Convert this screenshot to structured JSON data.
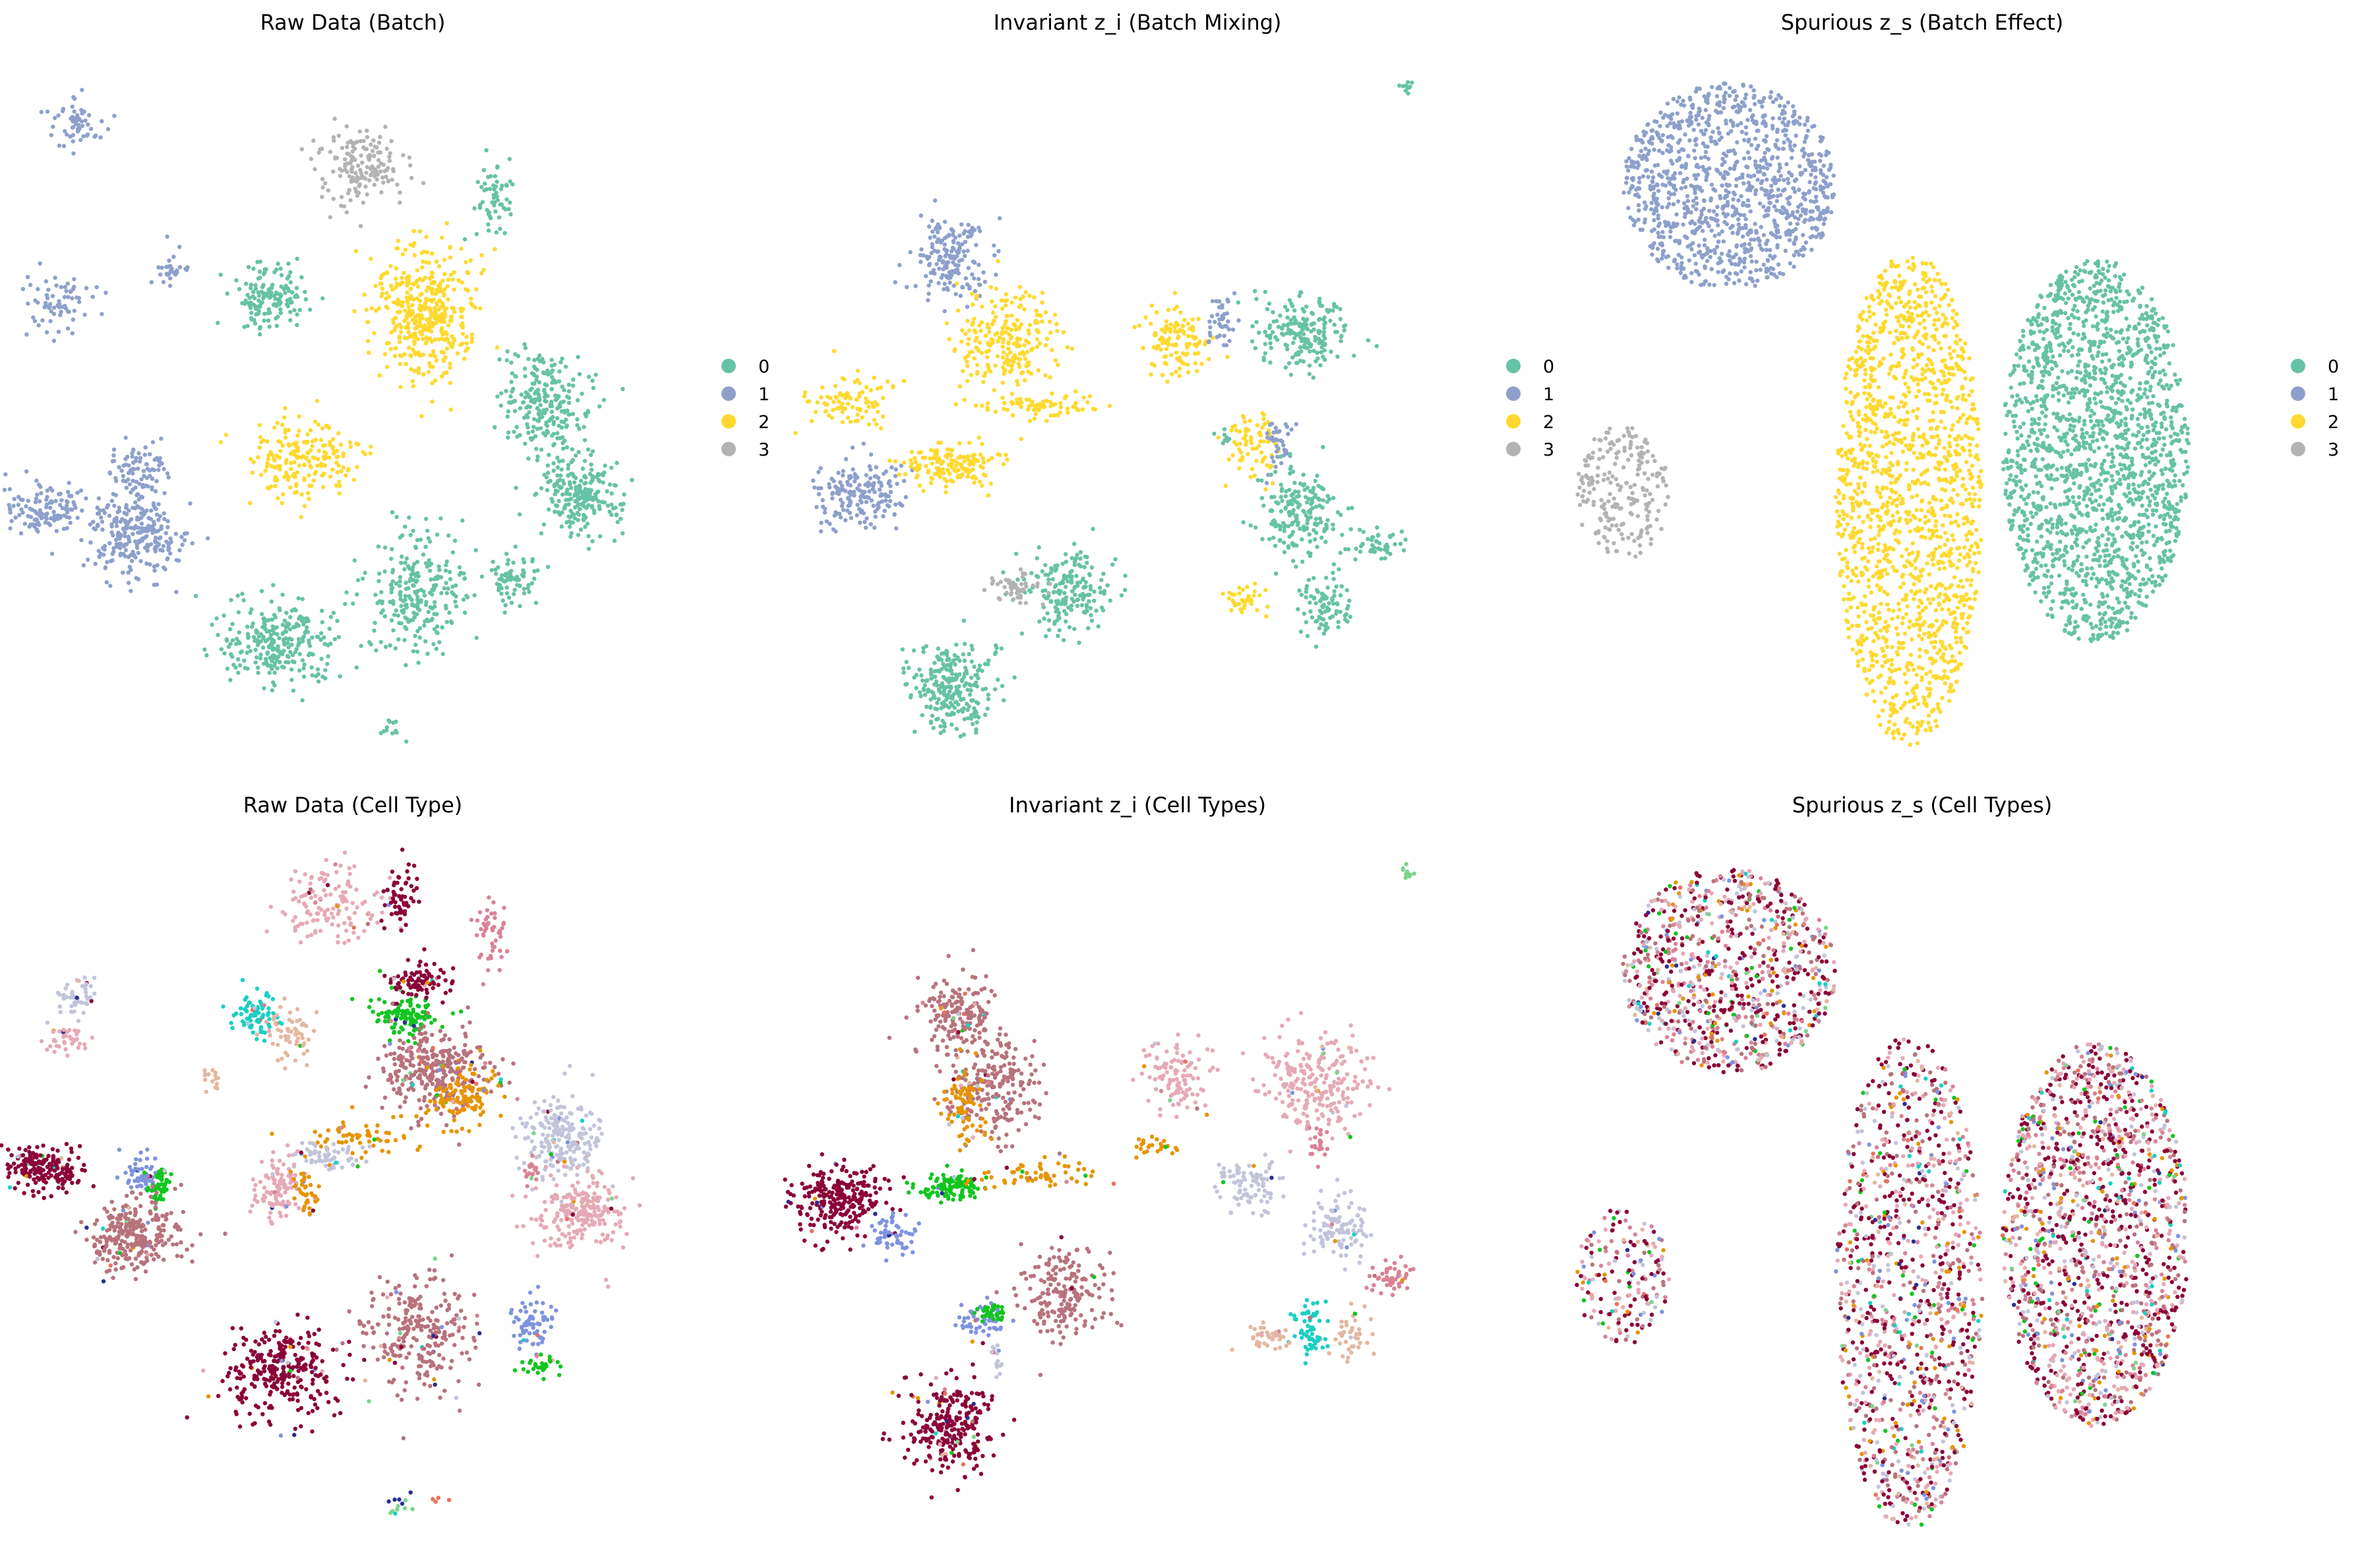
{
  "figure": {
    "background": "#ffffff"
  },
  "batch_palette": [
    "#66c2a5",
    "#8da0cb",
    "#ffd92f",
    "#b3b3b3"
  ],
  "celltype_palette": [
    "#8b0038",
    "#b8727c",
    "#e6a9b6",
    "#c2c4da",
    "#e69400",
    "#12c51f",
    "#7e93df",
    "#1bcfc3",
    "#d98296",
    "#e4b7a0",
    "#2a2f8f",
    "#7cd48b",
    "#e8715c"
  ],
  "chart_data": [
    {
      "type": "scatter",
      "title": "Raw Data (Batch)",
      "xlabel": "",
      "ylabel": "",
      "grid": false,
      "legend": {
        "placement": "right",
        "entries": [
          "0",
          "1",
          "2",
          "3"
        ]
      },
      "color_by": "batch",
      "clusters": [
        {
          "x": 0.115,
          "y": 0.095,
          "rx": 0.04,
          "ry": 0.04,
          "n": 60,
          "cat": 1
        },
        {
          "x": 0.09,
          "y": 0.36,
          "rx": 0.05,
          "ry": 0.045,
          "n": 70,
          "cat": 1
        },
        {
          "x": 0.26,
          "y": 0.305,
          "rx": 0.03,
          "ry": 0.03,
          "n": 30,
          "cat": 1
        },
        {
          "x": 0.065,
          "y": 0.655,
          "rx": 0.06,
          "ry": 0.035,
          "n": 120,
          "cat": 1
        },
        {
          "x": 0.205,
          "y": 0.6,
          "rx": 0.045,
          "ry": 0.05,
          "n": 90,
          "cat": 1
        },
        {
          "x": 0.2,
          "y": 0.7,
          "rx": 0.07,
          "ry": 0.06,
          "n": 260,
          "cat": 1
        },
        {
          "x": 0.54,
          "y": 0.155,
          "rx": 0.065,
          "ry": 0.06,
          "n": 160,
          "cat": 3
        },
        {
          "x": 0.405,
          "y": 0.345,
          "rx": 0.055,
          "ry": 0.055,
          "n": 140,
          "cat": 0
        },
        {
          "x": 0.74,
          "y": 0.205,
          "rx": 0.03,
          "ry": 0.05,
          "n": 60,
          "cat": 0
        },
        {
          "x": 0.64,
          "y": 0.37,
          "rx": 0.08,
          "ry": 0.09,
          "n": 420,
          "cat": 2
        },
        {
          "x": 0.45,
          "y": 0.585,
          "rx": 0.08,
          "ry": 0.055,
          "n": 200,
          "cat": 2
        },
        {
          "x": 0.82,
          "y": 0.5,
          "rx": 0.065,
          "ry": 0.065,
          "n": 240,
          "cat": 0
        },
        {
          "x": 0.87,
          "y": 0.635,
          "rx": 0.065,
          "ry": 0.055,
          "n": 230,
          "cat": 0
        },
        {
          "x": 0.63,
          "y": 0.78,
          "rx": 0.08,
          "ry": 0.09,
          "n": 250,
          "cat": 0
        },
        {
          "x": 0.77,
          "y": 0.76,
          "rx": 0.035,
          "ry": 0.04,
          "n": 70,
          "cat": 0
        },
        {
          "x": 0.42,
          "y": 0.85,
          "rx": 0.09,
          "ry": 0.06,
          "n": 280,
          "cat": 0
        },
        {
          "x": 0.59,
          "y": 0.975,
          "rx": 0.03,
          "ry": 0.015,
          "n": 12,
          "cat": 0
        }
      ]
    },
    {
      "type": "scatter",
      "title": "Invariant z_i (Batch Mixing)",
      "xlabel": "",
      "ylabel": "",
      "grid": false,
      "legend": {
        "placement": "right",
        "entries": [
          "0",
          "1",
          "2",
          "3"
        ]
      },
      "color_by": "batch",
      "clusters": [
        {
          "x": 0.935,
          "y": 0.04,
          "rx": 0.01,
          "ry": 0.01,
          "n": 10,
          "cat": 0
        },
        {
          "x": 0.25,
          "y": 0.29,
          "rx": 0.055,
          "ry": 0.06,
          "n": 180,
          "cat": 1
        },
        {
          "x": 0.33,
          "y": 0.41,
          "rx": 0.07,
          "ry": 0.07,
          "n": 230,
          "cat": 2
        },
        {
          "x": 0.1,
          "y": 0.5,
          "rx": 0.07,
          "ry": 0.04,
          "n": 90,
          "cat": 2
        },
        {
          "x": 0.11,
          "y": 0.635,
          "rx": 0.07,
          "ry": 0.05,
          "n": 180,
          "cat": 1
        },
        {
          "x": 0.25,
          "y": 0.59,
          "rx": 0.07,
          "ry": 0.03,
          "n": 160,
          "cat": 2
        },
        {
          "x": 0.38,
          "y": 0.505,
          "rx": 0.09,
          "ry": 0.02,
          "n": 70,
          "cat": 2
        },
        {
          "x": 0.585,
          "y": 0.41,
          "rx": 0.05,
          "ry": 0.05,
          "n": 120,
          "cat": 2
        },
        {
          "x": 0.655,
          "y": 0.385,
          "rx": 0.02,
          "ry": 0.04,
          "n": 40,
          "cat": 1
        },
        {
          "x": 0.78,
          "y": 0.395,
          "rx": 0.07,
          "ry": 0.055,
          "n": 190,
          "cat": 0
        },
        {
          "x": 0.7,
          "y": 0.555,
          "rx": 0.04,
          "ry": 0.05,
          "n": 70,
          "cat": 2
        },
        {
          "x": 0.745,
          "y": 0.56,
          "rx": 0.025,
          "ry": 0.04,
          "n": 40,
          "cat": 1
        },
        {
          "x": 0.77,
          "y": 0.655,
          "rx": 0.06,
          "ry": 0.07,
          "n": 190,
          "cat": 0
        },
        {
          "x": 0.885,
          "y": 0.71,
          "rx": 0.05,
          "ry": 0.03,
          "n": 50,
          "cat": 0
        },
        {
          "x": 0.81,
          "y": 0.795,
          "rx": 0.04,
          "ry": 0.05,
          "n": 90,
          "cat": 0
        },
        {
          "x": 0.66,
          "y": 0.55,
          "rx": 0.01,
          "ry": 0.015,
          "n": 8,
          "cat": 0
        },
        {
          "x": 0.42,
          "y": 0.775,
          "rx": 0.065,
          "ry": 0.06,
          "n": 190,
          "cat": 0
        },
        {
          "x": 0.35,
          "y": 0.77,
          "rx": 0.045,
          "ry": 0.02,
          "n": 50,
          "cat": 3
        },
        {
          "x": 0.25,
          "y": 0.92,
          "rx": 0.065,
          "ry": 0.07,
          "n": 260,
          "cat": 0
        },
        {
          "x": 0.69,
          "y": 0.79,
          "rx": 0.035,
          "ry": 0.02,
          "n": 40,
          "cat": 2
        }
      ]
    },
    {
      "type": "scatter",
      "title": "Spurious z_s (Batch Effect)",
      "xlabel": "",
      "ylabel": "",
      "grid": false,
      "legend": {
        "placement": "right",
        "entries": [
          "0",
          "1",
          "2",
          "3"
        ]
      },
      "color_by": "batch",
      "clusters": [
        {
          "x": 0.24,
          "y": 0.185,
          "rx": 0.16,
          "ry": 0.15,
          "n": 1100,
          "cat": 1
        },
        {
          "x": 0.08,
          "y": 0.63,
          "rx": 0.07,
          "ry": 0.1,
          "n": 220,
          "cat": 3
        },
        {
          "x": 0.51,
          "y": 0.64,
          "rx": 0.11,
          "ry": 0.36,
          "n": 1500,
          "cat": 2
        },
        {
          "x": 0.79,
          "y": 0.57,
          "rx": 0.14,
          "ry": 0.28,
          "n": 1800,
          "cat": 0
        }
      ]
    },
    {
      "type": "scatter",
      "title": "Raw Data (Cell Type)",
      "xlabel": "",
      "ylabel": "",
      "grid": false,
      "legend": {
        "placement": "none",
        "entries": []
      },
      "color_by": "celltype",
      "clusters": [
        {
          "x": 0.5,
          "y": 0.09,
          "rx": 0.08,
          "ry": 0.06,
          "n": 140,
          "cat": 2
        },
        {
          "x": 0.6,
          "y": 0.08,
          "rx": 0.025,
          "ry": 0.05,
          "n": 60,
          "cat": 0
        },
        {
          "x": 0.74,
          "y": 0.13,
          "rx": 0.025,
          "ry": 0.05,
          "n": 50,
          "cat": 8
        },
        {
          "x": 0.115,
          "y": 0.22,
          "rx": 0.035,
          "ry": 0.03,
          "n": 50,
          "cat": 3
        },
        {
          "x": 0.1,
          "y": 0.285,
          "rx": 0.035,
          "ry": 0.02,
          "n": 40,
          "cat": 2
        },
        {
          "x": 0.385,
          "y": 0.25,
          "rx": 0.035,
          "ry": 0.035,
          "n": 80,
          "cat": 7
        },
        {
          "x": 0.44,
          "y": 0.28,
          "rx": 0.035,
          "ry": 0.04,
          "n": 60,
          "cat": 9
        },
        {
          "x": 0.32,
          "y": 0.34,
          "rx": 0.015,
          "ry": 0.015,
          "n": 15,
          "cat": 9
        },
        {
          "x": 0.61,
          "y": 0.25,
          "rx": 0.05,
          "ry": 0.03,
          "n": 120,
          "cat": 5
        },
        {
          "x": 0.63,
          "y": 0.2,
          "rx": 0.05,
          "ry": 0.03,
          "n": 90,
          "cat": 0
        },
        {
          "x": 0.65,
          "y": 0.33,
          "rx": 0.08,
          "ry": 0.06,
          "n": 320,
          "cat": 1
        },
        {
          "x": 0.69,
          "y": 0.37,
          "rx": 0.05,
          "ry": 0.04,
          "n": 120,
          "cat": 4
        },
        {
          "x": 0.53,
          "y": 0.43,
          "rx": 0.09,
          "ry": 0.03,
          "n": 60,
          "cat": 4
        },
        {
          "x": 0.49,
          "y": 0.455,
          "rx": 0.05,
          "ry": 0.02,
          "n": 60,
          "cat": 3
        },
        {
          "x": 0.42,
          "y": 0.5,
          "rx": 0.035,
          "ry": 0.05,
          "n": 110,
          "cat": 2
        },
        {
          "x": 0.46,
          "y": 0.51,
          "rx": 0.02,
          "ry": 0.03,
          "n": 40,
          "cat": 4
        },
        {
          "x": 0.065,
          "y": 0.475,
          "rx": 0.06,
          "ry": 0.03,
          "n": 200,
          "cat": 0
        },
        {
          "x": 0.215,
          "y": 0.485,
          "rx": 0.025,
          "ry": 0.03,
          "n": 60,
          "cat": 6
        },
        {
          "x": 0.24,
          "y": 0.5,
          "rx": 0.015,
          "ry": 0.03,
          "n": 50,
          "cat": 5
        },
        {
          "x": 0.2,
          "y": 0.57,
          "rx": 0.07,
          "ry": 0.05,
          "n": 280,
          "cat": 1
        },
        {
          "x": 0.84,
          "y": 0.43,
          "rx": 0.06,
          "ry": 0.06,
          "n": 210,
          "cat": 3
        },
        {
          "x": 0.87,
          "y": 0.54,
          "rx": 0.07,
          "ry": 0.055,
          "n": 230,
          "cat": 2
        },
        {
          "x": 0.8,
          "y": 0.475,
          "rx": 0.015,
          "ry": 0.02,
          "n": 20,
          "cat": 8
        },
        {
          "x": 0.63,
          "y": 0.71,
          "rx": 0.08,
          "ry": 0.09,
          "n": 260,
          "cat": 1
        },
        {
          "x": 0.8,
          "y": 0.7,
          "rx": 0.035,
          "ry": 0.04,
          "n": 70,
          "cat": 6
        },
        {
          "x": 0.81,
          "y": 0.76,
          "rx": 0.03,
          "ry": 0.015,
          "n": 30,
          "cat": 5
        },
        {
          "x": 0.42,
          "y": 0.77,
          "rx": 0.09,
          "ry": 0.07,
          "n": 300,
          "cat": 0
        },
        {
          "x": 0.59,
          "y": 0.97,
          "rx": 0.02,
          "ry": 0.02,
          "n": 8,
          "cat": 11
        },
        {
          "x": 0.6,
          "y": 0.95,
          "rx": 0.015,
          "ry": 0.01,
          "n": 5,
          "cat": 10
        },
        {
          "x": 0.66,
          "y": 0.96,
          "rx": 0.015,
          "ry": 0.01,
          "n": 4,
          "cat": 12
        }
      ]
    },
    {
      "type": "scatter",
      "title": "Invariant z_i (Cell Types)",
      "xlabel": "",
      "ylabel": "",
      "grid": false,
      "legend": {
        "placement": "none",
        "entries": []
      },
      "color_by": "celltype",
      "clusters": [
        {
          "x": 0.935,
          "y": 0.04,
          "rx": 0.01,
          "ry": 0.01,
          "n": 10,
          "cat": 11
        },
        {
          "x": 0.26,
          "y": 0.25,
          "rx": 0.06,
          "ry": 0.06,
          "n": 180,
          "cat": 1
        },
        {
          "x": 0.32,
          "y": 0.35,
          "rx": 0.07,
          "ry": 0.07,
          "n": 220,
          "cat": 1
        },
        {
          "x": 0.27,
          "y": 0.38,
          "rx": 0.03,
          "ry": 0.06,
          "n": 80,
          "cat": 4
        },
        {
          "x": 0.08,
          "y": 0.52,
          "rx": 0.07,
          "ry": 0.05,
          "n": 260,
          "cat": 0
        },
        {
          "x": 0.16,
          "y": 0.57,
          "rx": 0.04,
          "ry": 0.03,
          "n": 60,
          "cat": 6
        },
        {
          "x": 0.25,
          "y": 0.5,
          "rx": 0.05,
          "ry": 0.02,
          "n": 110,
          "cat": 5
        },
        {
          "x": 0.38,
          "y": 0.48,
          "rx": 0.09,
          "ry": 0.02,
          "n": 60,
          "cat": 4
        },
        {
          "x": 0.55,
          "y": 0.44,
          "rx": 0.04,
          "ry": 0.015,
          "n": 25,
          "cat": 4
        },
        {
          "x": 0.59,
          "y": 0.34,
          "rx": 0.05,
          "ry": 0.05,
          "n": 110,
          "cat": 2
        },
        {
          "x": 0.8,
          "y": 0.35,
          "rx": 0.08,
          "ry": 0.07,
          "n": 240,
          "cat": 2
        },
        {
          "x": 0.7,
          "y": 0.5,
          "rx": 0.05,
          "ry": 0.045,
          "n": 90,
          "cat": 3
        },
        {
          "x": 0.8,
          "y": 0.44,
          "rx": 0.015,
          "ry": 0.03,
          "n": 20,
          "cat": 8
        },
        {
          "x": 0.83,
          "y": 0.56,
          "rx": 0.045,
          "ry": 0.05,
          "n": 110,
          "cat": 3
        },
        {
          "x": 0.91,
          "y": 0.63,
          "rx": 0.04,
          "ry": 0.025,
          "n": 50,
          "cat": 8
        },
        {
          "x": 0.79,
          "y": 0.71,
          "rx": 0.03,
          "ry": 0.04,
          "n": 60,
          "cat": 7
        },
        {
          "x": 0.85,
          "y": 0.72,
          "rx": 0.03,
          "ry": 0.04,
          "n": 40,
          "cat": 9
        },
        {
          "x": 0.73,
          "y": 0.72,
          "rx": 0.04,
          "ry": 0.02,
          "n": 40,
          "cat": 9
        },
        {
          "x": 0.42,
          "y": 0.655,
          "rx": 0.065,
          "ry": 0.065,
          "n": 200,
          "cat": 1
        },
        {
          "x": 0.3,
          "y": 0.69,
          "rx": 0.035,
          "ry": 0.025,
          "n": 60,
          "cat": 6
        },
        {
          "x": 0.31,
          "y": 0.68,
          "rx": 0.02,
          "ry": 0.015,
          "n": 30,
          "cat": 5
        },
        {
          "x": 0.25,
          "y": 0.85,
          "rx": 0.065,
          "ry": 0.075,
          "n": 270,
          "cat": 0
        },
        {
          "x": 0.32,
          "y": 0.76,
          "rx": 0.01,
          "ry": 0.03,
          "n": 15,
          "cat": 3
        }
      ]
    },
    {
      "type": "scatter",
      "title": "Spurious z_s (Cell Types)",
      "xlabel": "",
      "ylabel": "",
      "grid": false,
      "legend": {
        "placement": "none",
        "entries": []
      },
      "color_by": "celltype",
      "mixed": true,
      "mix_weights": [
        30,
        14,
        16,
        9,
        5,
        3,
        4,
        2,
        10,
        4,
        1,
        1,
        1
      ],
      "clusters": [
        {
          "x": 0.24,
          "y": 0.185,
          "rx": 0.16,
          "ry": 0.15,
          "n": 900,
          "cat": -1
        },
        {
          "x": 0.08,
          "y": 0.63,
          "rx": 0.07,
          "ry": 0.1,
          "n": 180,
          "cat": -1
        },
        {
          "x": 0.51,
          "y": 0.64,
          "rx": 0.11,
          "ry": 0.36,
          "n": 1100,
          "cat": -1
        },
        {
          "x": 0.79,
          "y": 0.57,
          "rx": 0.14,
          "ry": 0.28,
          "n": 1500,
          "cat": -1
        }
      ]
    }
  ]
}
